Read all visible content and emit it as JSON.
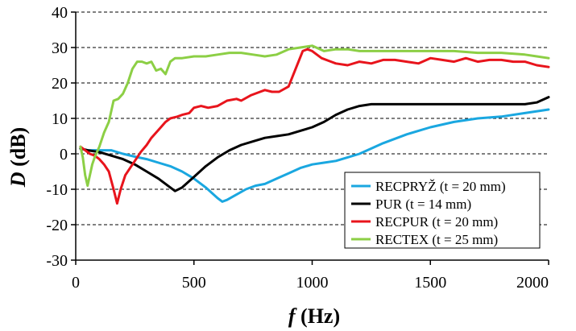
{
  "chart_data": {
    "type": "line",
    "title": "",
    "xlabel_italic": "f",
    "xlabel_rest": " (Hz)",
    "ylabel_italic": "D",
    "ylabel_rest": " (dB)",
    "xlim": [
      0,
      2000
    ],
    "ylim": [
      -30,
      40
    ],
    "xticks": [
      0,
      500,
      1000,
      1500,
      2000
    ],
    "yticks": [
      -30,
      -20,
      -10,
      0,
      10,
      20,
      30,
      40
    ],
    "grid": "horizontal-dashed",
    "legend_position": "bottom-right",
    "series": [
      {
        "name": "RECPRYŽ (t = 20 mm)",
        "color": "#1aa7e0",
        "x": [
          20,
          50,
          100,
          150,
          200,
          250,
          300,
          350,
          400,
          450,
          500,
          550,
          600,
          620,
          640,
          680,
          720,
          760,
          800,
          850,
          900,
          950,
          1000,
          1050,
          1100,
          1150,
          1200,
          1300,
          1400,
          1500,
          1600,
          1700,
          1800,
          1900,
          2000
        ],
        "y": [
          1.5,
          1.0,
          1.0,
          1.0,
          0.0,
          -0.8,
          -1.5,
          -2.5,
          -3.5,
          -5.0,
          -7.0,
          -9.5,
          -12.5,
          -13.5,
          -13.0,
          -11.5,
          -10.0,
          -9.0,
          -8.5,
          -7.0,
          -5.5,
          -4.0,
          -3.0,
          -2.5,
          -2.0,
          -1.0,
          0.0,
          3.0,
          5.5,
          7.5,
          9.0,
          10.0,
          10.5,
          11.5,
          12.5
        ]
      },
      {
        "name": "PUR (t = 14 mm)",
        "color": "#000000",
        "x": [
          20,
          50,
          100,
          150,
          200,
          250,
          300,
          350,
          400,
          420,
          450,
          500,
          550,
          600,
          650,
          700,
          750,
          800,
          850,
          900,
          950,
          1000,
          1050,
          1100,
          1150,
          1200,
          1250,
          1300,
          1400,
          1500,
          1600,
          1700,
          1800,
          1900,
          1950,
          2000
        ],
        "y": [
          1.5,
          1.0,
          0.5,
          -0.5,
          -1.5,
          -3.0,
          -5.0,
          -7.0,
          -9.5,
          -10.5,
          -9.5,
          -6.5,
          -3.5,
          -1.0,
          1.0,
          2.5,
          3.5,
          4.5,
          5.0,
          5.5,
          6.5,
          7.5,
          9.0,
          11.0,
          12.5,
          13.5,
          14.0,
          14.0,
          14.0,
          14.0,
          14.0,
          14.0,
          14.0,
          14.0,
          14.5,
          16.0
        ]
      },
      {
        "name": "RECPUR (t = 20 mm)",
        "color": "#e8141c",
        "x": [
          20,
          40,
          60,
          80,
          100,
          120,
          140,
          160,
          175,
          190,
          210,
          230,
          250,
          275,
          300,
          320,
          340,
          360,
          380,
          400,
          430,
          450,
          480,
          500,
          530,
          560,
          600,
          640,
          680,
          700,
          740,
          780,
          800,
          830,
          860,
          900,
          930,
          960,
          980,
          1000,
          1040,
          1080,
          1100,
          1150,
          1200,
          1250,
          1300,
          1350,
          1400,
          1450,
          1500,
          1550,
          1600,
          1650,
          1700,
          1750,
          1800,
          1850,
          1900,
          1950,
          2000
        ],
        "y": [
          2.0,
          1.0,
          0.0,
          -0.5,
          -1.5,
          -3.0,
          -5.0,
          -10.0,
          -14.0,
          -10.0,
          -6.0,
          -4.0,
          -2.0,
          0.5,
          2.5,
          4.5,
          6.0,
          7.5,
          9.0,
          10.0,
          10.5,
          11.0,
          11.5,
          13.0,
          13.5,
          13.0,
          13.5,
          15.0,
          15.5,
          15.0,
          16.5,
          17.5,
          18.0,
          17.5,
          17.5,
          19.0,
          24.0,
          29.0,
          29.5,
          29.0,
          27.0,
          26.0,
          25.5,
          25.0,
          26.0,
          25.5,
          26.5,
          26.5,
          26.0,
          25.5,
          27.0,
          26.5,
          26.0,
          27.0,
          26.0,
          26.5,
          26.5,
          26.0,
          26.0,
          25.0,
          24.5
        ]
      },
      {
        "name": "RECTEX (t = 25 mm)",
        "color": "#8ccf45",
        "x": [
          20,
          30,
          40,
          50,
          60,
          70,
          80,
          100,
          120,
          140,
          160,
          180,
          200,
          220,
          240,
          260,
          280,
          300,
          320,
          340,
          360,
          380,
          400,
          420,
          450,
          500,
          550,
          600,
          650,
          700,
          750,
          800,
          850,
          900,
          950,
          1000,
          1050,
          1100,
          1150,
          1200,
          1300,
          1400,
          1500,
          1600,
          1700,
          1800,
          1900,
          1950,
          2000
        ],
        "y": [
          2.0,
          -1.0,
          -6.0,
          -9.0,
          -6.0,
          -3.0,
          -1.0,
          2.0,
          6.0,
          9.0,
          15.0,
          15.5,
          17.0,
          20.0,
          24.0,
          26.0,
          26.0,
          25.5,
          26.0,
          23.5,
          24.0,
          22.5,
          26.0,
          27.0,
          27.0,
          27.5,
          27.5,
          28.0,
          28.5,
          28.5,
          28.0,
          27.5,
          28.0,
          29.5,
          30.0,
          30.5,
          29.0,
          29.5,
          29.5,
          29.0,
          29.0,
          29.0,
          29.0,
          29.0,
          28.5,
          28.5,
          28.0,
          27.5,
          27.0
        ]
      }
    ]
  }
}
